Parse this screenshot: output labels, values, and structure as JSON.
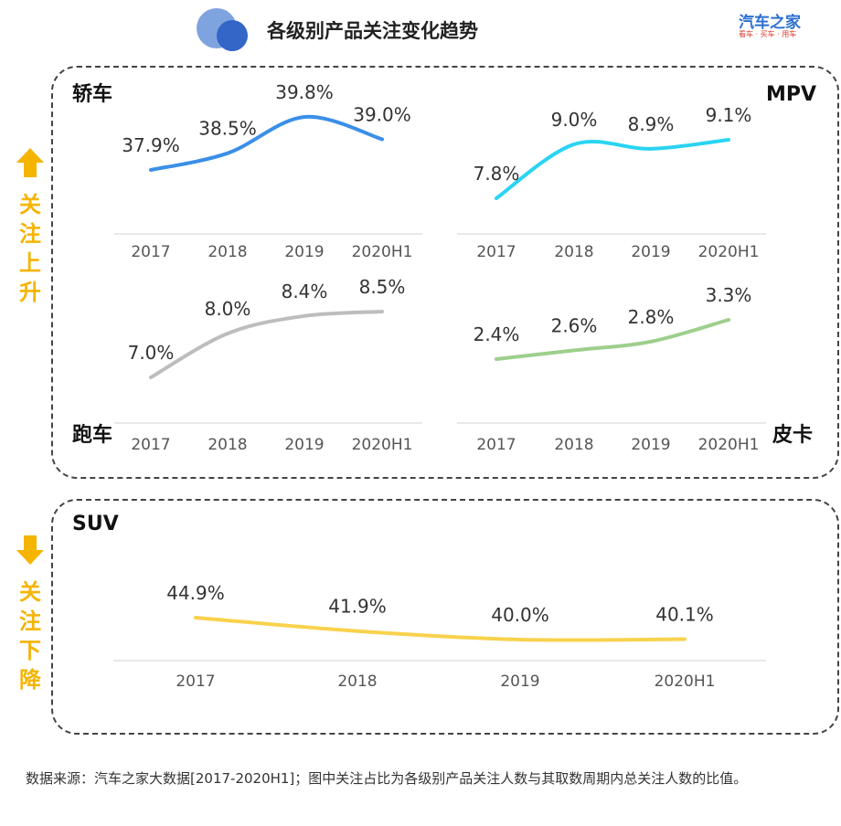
{
  "header": {
    "title": "各级别产品关注变化趋势",
    "logo": "汽车之家",
    "logo_tagline": "看车 · 买车 · 用车"
  },
  "groups": {
    "up": {
      "label_chars": [
        "关",
        "注",
        "上",
        "升"
      ],
      "arrow": "up-arrow"
    },
    "down": {
      "label_chars": [
        "关",
        "注",
        "下",
        "降"
      ],
      "arrow": "down-arrow"
    }
  },
  "colors": {
    "sedan": "#3a8fe8",
    "mpv": "#29d4f2",
    "sports": "#bdbdbd",
    "pickup": "#9dcf8c",
    "suv": "#f9d24c",
    "accent": "#f5b400"
  },
  "chart_data": [
    {
      "type": "line",
      "title": "轿车",
      "categories": [
        "2017",
        "2018",
        "2019",
        "2020H1"
      ],
      "values": [
        37.9,
        38.5,
        39.8,
        39.0
      ],
      "labels": [
        "37.9%",
        "38.5%",
        "39.8%",
        "39.0%"
      ],
      "unit": "%"
    },
    {
      "type": "line",
      "title": "MPV",
      "categories": [
        "2017",
        "2018",
        "2019",
        "2020H1"
      ],
      "values": [
        7.8,
        9.0,
        8.9,
        9.1
      ],
      "labels": [
        "7.8%",
        "9.0%",
        "8.9%",
        "9.1%"
      ],
      "unit": "%"
    },
    {
      "type": "line",
      "title": "跑车",
      "categories": [
        "2017",
        "2018",
        "2019",
        "2020H1"
      ],
      "values": [
        7.0,
        8.0,
        8.4,
        8.5
      ],
      "labels": [
        "7.0%",
        "8.0%",
        "8.4%",
        "8.5%"
      ],
      "unit": "%"
    },
    {
      "type": "line",
      "title": "皮卡",
      "categories": [
        "2017",
        "2018",
        "2019",
        "2020H1"
      ],
      "values": [
        2.4,
        2.6,
        2.8,
        3.3
      ],
      "labels": [
        "2.4%",
        "2.6%",
        "2.8%",
        "3.3%"
      ],
      "unit": "%"
    },
    {
      "type": "line",
      "title": "SUV",
      "categories": [
        "2017",
        "2018",
        "2019",
        "2020H1"
      ],
      "values": [
        44.9,
        41.9,
        40.0,
        40.1
      ],
      "labels": [
        "44.9%",
        "41.9%",
        "40.0%",
        "40.1%"
      ],
      "unit": "%"
    }
  ],
  "footnote": "数据来源：汽车之家大数据[2017-2020H1]；图中关注占比为各级别产品关注人数与其取数周期内总关注人数的比值。"
}
